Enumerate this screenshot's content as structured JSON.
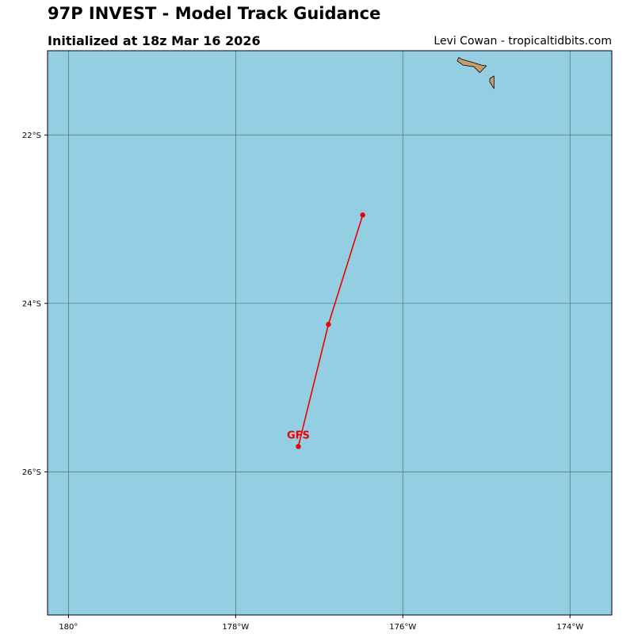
{
  "header": {
    "title": "97P INVEST - Model Track Guidance",
    "subtitle": "Initialized at 18z Mar 16 2026",
    "credit": "Levi Cowan - tropicaltidbits.com"
  },
  "map": {
    "ocean_color": "#94cee3",
    "land_color": "#c69c6d",
    "grid_color": "#49707a",
    "lon_range": [
      -180.25,
      -173.5
    ],
    "lat_range": [
      -27.7,
      -21.0
    ],
    "lon_ticks": [
      {
        "value": -180,
        "label": "180°"
      },
      {
        "value": -178,
        "label": "178°W"
      },
      {
        "value": -176,
        "label": "176°W"
      },
      {
        "value": -174,
        "label": "174°W"
      }
    ],
    "lat_ticks": [
      {
        "value": -22,
        "label": "22°S"
      },
      {
        "value": -24,
        "label": "24°S"
      },
      {
        "value": -26,
        "label": "26°S"
      }
    ]
  },
  "land": [
    {
      "name": "island-1",
      "points": [
        [
          -175.35,
          -21.12
        ],
        [
          -175.28,
          -21.17
        ],
        [
          -175.15,
          -21.19
        ],
        [
          -175.08,
          -21.26
        ],
        [
          -175.0,
          -21.18
        ],
        [
          -175.06,
          -21.17
        ],
        [
          -175.16,
          -21.14
        ],
        [
          -175.3,
          -21.1
        ],
        [
          -175.33,
          -21.08
        ]
      ]
    },
    {
      "name": "island-2",
      "points": [
        [
          -174.96,
          -21.33
        ],
        [
          -174.91,
          -21.3
        ],
        [
          -174.91,
          -21.45
        ],
        [
          -174.96,
          -21.37
        ]
      ]
    }
  ],
  "tracks": [
    {
      "model": "GFS",
      "color": "#ee0000",
      "points": [
        [
          -176.48,
          -22.95
        ],
        [
          -176.89,
          -24.25
        ],
        [
          -177.25,
          -25.7
        ]
      ]
    }
  ]
}
